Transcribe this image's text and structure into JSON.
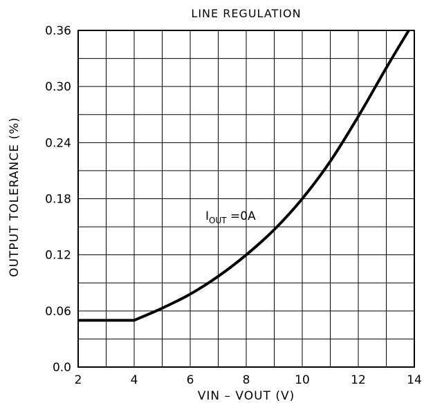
{
  "chart_data": {
    "type": "line",
    "title": "LINE REGULATION",
    "xlabel": "VIN  –  VOUT  (V)",
    "ylabel": "OUTPUT TOLERANCE (%)",
    "xlim": [
      2,
      14
    ],
    "ylim": [
      0,
      0.36
    ],
    "x_ticks": [
      2,
      4,
      6,
      8,
      10,
      12,
      14
    ],
    "x_tick_labels": [
      "2",
      "4",
      "6",
      "8",
      "10",
      "12",
      "14"
    ],
    "y_ticks": [
      0,
      0.06,
      0.12,
      0.18,
      0.24,
      0.3,
      0.36
    ],
    "y_tick_labels": [
      "0.0",
      "0.06",
      "0.12",
      "0.18",
      "0.24",
      "0.30",
      "0.36"
    ],
    "grid": true,
    "grid_x_step": 1,
    "grid_y_step": 0.03,
    "annotation": {
      "main": "I",
      "sub": "OUT",
      "tail": " =0A"
    },
    "series": [
      {
        "x": [
          2,
          3,
          4,
          5,
          6,
          7,
          8,
          9,
          10,
          11,
          12,
          13,
          13.8
        ],
        "values": [
          0.05,
          0.05,
          0.05,
          0.063,
          0.078,
          0.097,
          0.12,
          0.147,
          0.18,
          0.22,
          0.268,
          0.32,
          0.36
        ]
      }
    ]
  }
}
